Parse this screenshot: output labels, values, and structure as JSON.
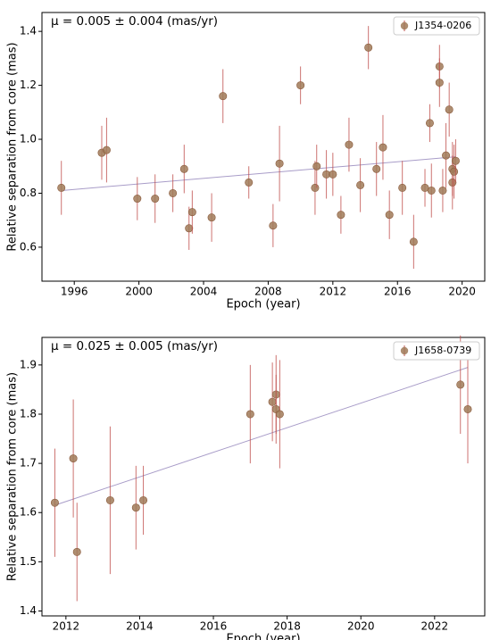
{
  "chart_data": [
    {
      "type": "scatter",
      "annotation": "μ = 0.005 ± 0.004 (mas/yr)",
      "xlabel": "Epoch (year)",
      "ylabel": "Relative separation from core (mas)",
      "legend": "upper right",
      "xlim": [
        1994.0,
        2021.4
      ],
      "xticks": [
        1996,
        2000,
        2004,
        2008,
        2012,
        2016,
        2020
      ],
      "ylim": [
        0.474,
        1.47
      ],
      "yticks": [
        0.6,
        0.8,
        {
          "value": 1.0,
          "label": "1.0"
        },
        1.2,
        1.4
      ],
      "series": [
        {
          "name": "J1354-0206",
          "color": "#a07a58",
          "error_color": "#c0504d",
          "x": [
            1995.2,
            1997.7,
            1998.0,
            1999.9,
            2001.0,
            2002.1,
            2002.8,
            2003.1,
            2003.3,
            2004.5,
            2005.2,
            2006.8,
            2008.3,
            2008.7,
            2010.0,
            2010.9,
            2011.0,
            2011.6,
            2012.0,
            2012.5,
            2013.0,
            2013.7,
            2014.2,
            2014.7,
            2015.1,
            2015.5,
            2016.3,
            2017.0,
            2017.7,
            2018.0,
            2018.1,
            2018.6,
            2018.6,
            2018.8,
            2019.0,
            2019.2,
            2019.4,
            2019.4,
            2019.5,
            2019.6
          ],
          "values": [
            0.82,
            0.95,
            0.96,
            0.78,
            0.78,
            0.8,
            0.89,
            0.67,
            0.73,
            0.71,
            1.16,
            0.84,
            0.68,
            0.91,
            1.2,
            0.82,
            0.9,
            0.87,
            0.87,
            0.72,
            0.98,
            0.83,
            1.34,
            0.89,
            0.97,
            0.72,
            0.82,
            0.62,
            0.82,
            1.06,
            0.81,
            1.27,
            1.21,
            0.81,
            0.94,
            1.11,
            0.84,
            0.89,
            0.88,
            0.92
          ],
          "errors": [
            0.1,
            0.1,
            0.12,
            0.08,
            0.09,
            0.07,
            0.09,
            0.08,
            0.08,
            0.09,
            0.1,
            0.06,
            0.08,
            0.14,
            0.07,
            0.1,
            0.08,
            0.09,
            0.08,
            0.07,
            0.1,
            0.1,
            0.08,
            0.1,
            0.12,
            0.09,
            0.1,
            0.1,
            0.07,
            0.07,
            0.1,
            0.08,
            0.09,
            0.08,
            0.12,
            0.1,
            0.1,
            0.1,
            0.1,
            0.08
          ]
        }
      ],
      "fit": {
        "color": "#a89cc8",
        "x": [
          1995.2,
          2019.6
        ],
        "values": [
          0.81,
          0.935
        ]
      }
    },
    {
      "type": "scatter",
      "annotation": "μ = 0.025 ± 0.005 (mas/yr)",
      "xlabel": "Epoch (year)",
      "ylabel": "Relative separation from core (mas)",
      "legend": "upper right",
      "xlim": [
        2011.35,
        2023.36
      ],
      "xticks": [
        2012,
        2014,
        2016,
        2018,
        2020,
        2022
      ],
      "ylim": [
        1.39,
        1.956
      ],
      "yticks": [
        1.4,
        1.5,
        1.6,
        1.7,
        1.8,
        1.9
      ],
      "series": [
        {
          "name": "J1658-0739",
          "color": "#a07a58",
          "error_color": "#c0504d",
          "x": [
            2011.7,
            2012.2,
            2012.3,
            2013.2,
            2013.9,
            2014.1,
            2017.0,
            2017.6,
            2017.7,
            2017.7,
            2017.8,
            2022.7,
            2022.9
          ],
          "values": [
            1.62,
            1.71,
            1.52,
            1.625,
            1.61,
            1.625,
            1.8,
            1.825,
            1.84,
            1.81,
            1.8,
            1.86,
            1.81
          ],
          "errors": [
            0.11,
            0.12,
            0.1,
            0.15,
            0.085,
            0.07,
            0.1,
            0.08,
            0.08,
            0.07,
            0.11,
            0.1,
            0.11
          ]
        }
      ],
      "fit": {
        "color": "#a89cc8",
        "x": [
          2011.7,
          2022.9
        ],
        "values": [
          1.615,
          1.895
        ]
      }
    }
  ]
}
